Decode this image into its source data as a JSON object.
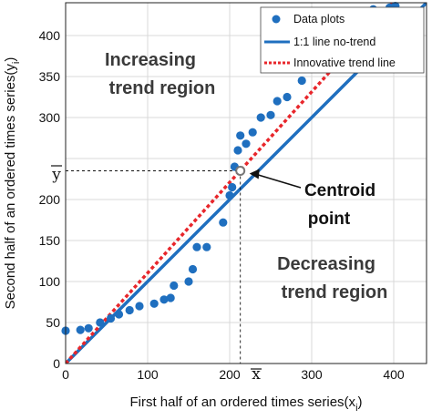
{
  "chart_data": {
    "type": "scatter",
    "xlabel": "First half of an ordered times series(x",
    "xlabel_sub": "i",
    "xlabel_end": ")",
    "ylabel": "Second half of an ordered times series(y",
    "ylabel_sub": "i",
    "ylabel_end": ")",
    "xlim": [
      0,
      440
    ],
    "ylim": [
      0,
      440
    ],
    "xticks": [
      0,
      100,
      200,
      300,
      400
    ],
    "yticks": [
      0,
      50,
      100,
      150,
      200,
      250,
      300,
      350,
      400
    ],
    "grid": true,
    "legend_position": "top-right",
    "series": [
      {
        "name": "Data plots",
        "kind": "scatter",
        "color": "#1f6fbf",
        "points": [
          [
            0,
            40
          ],
          [
            18,
            41
          ],
          [
            28,
            43
          ],
          [
            42,
            50
          ],
          [
            55,
            55
          ],
          [
            65,
            60
          ],
          [
            78,
            65
          ],
          [
            90,
            70
          ],
          [
            108,
            73
          ],
          [
            120,
            78
          ],
          [
            128,
            80
          ],
          [
            132,
            95
          ],
          [
            150,
            100
          ],
          [
            155,
            115
          ],
          [
            160,
            142
          ],
          [
            172,
            142
          ],
          [
            192,
            172
          ],
          [
            200,
            205
          ],
          [
            203,
            215
          ],
          [
            206,
            240
          ],
          [
            210,
            260
          ],
          [
            213,
            278
          ],
          [
            220,
            268
          ],
          [
            228,
            282
          ],
          [
            238,
            300
          ],
          [
            250,
            303
          ],
          [
            258,
            320
          ],
          [
            270,
            325
          ],
          [
            288,
            345
          ],
          [
            300,
            365
          ],
          [
            320,
            380
          ],
          [
            345,
            405
          ],
          [
            372,
            420
          ],
          [
            375,
            432
          ],
          [
            395,
            434
          ],
          [
            402,
            436
          ]
        ]
      },
      {
        "name": "1:1 line no-trend",
        "kind": "line",
        "color": "#1f6fbf",
        "line": [
          [
            0,
            0
          ],
          [
            440,
            440
          ]
        ]
      },
      {
        "name": "Innovative trend line",
        "kind": "dashed-line",
        "color": "#e8262b",
        "line": [
          [
            0,
            0
          ],
          [
            440,
            486
          ]
        ]
      }
    ],
    "centroid": {
      "x": 213,
      "y": 235
    },
    "y_mean_label": "y",
    "x_mean_label": "x",
    "annotations": {
      "increasing_line1": "Increasing",
      "increasing_line2": "trend  region",
      "decreasing_line1": "Decreasing",
      "decreasing_line2": "trend region",
      "centroid_line1": "Centroid",
      "centroid_line2": "point"
    }
  }
}
